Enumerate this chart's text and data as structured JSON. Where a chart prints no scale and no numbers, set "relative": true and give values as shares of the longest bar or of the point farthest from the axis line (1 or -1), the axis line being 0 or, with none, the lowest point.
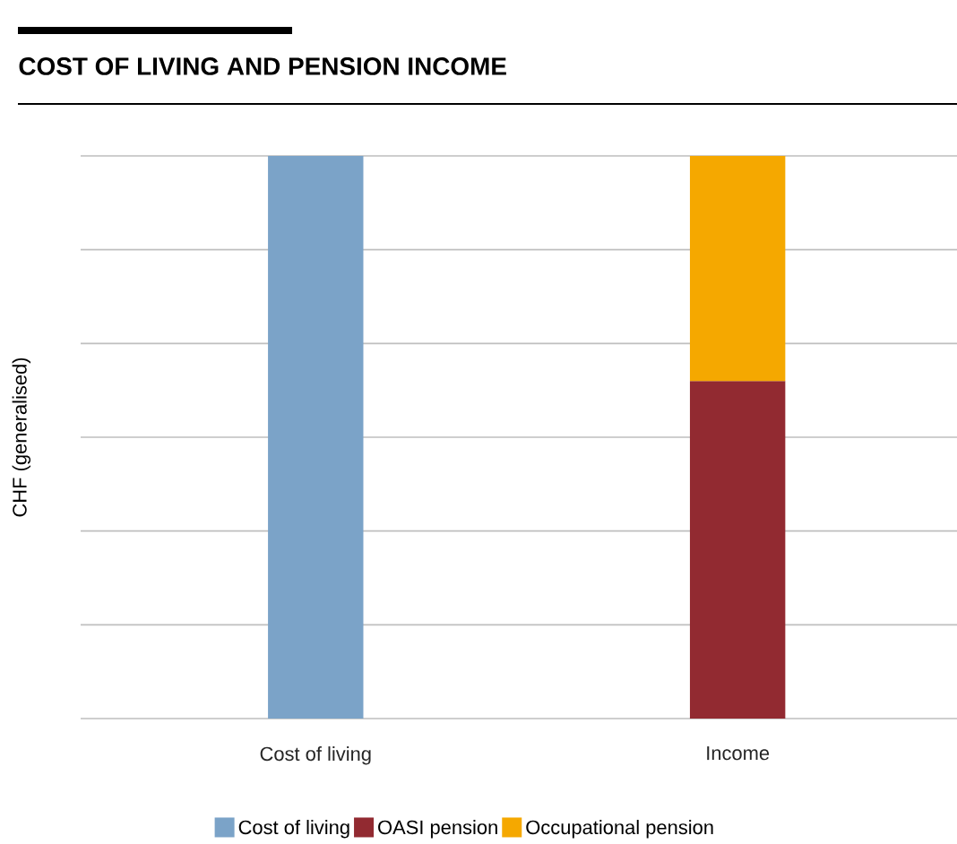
{
  "chart_data": {
    "type": "bar",
    "title": "COST OF LIVING AND PENSION INCOME",
    "ylabel": "CHF (generalised)",
    "relative": true,
    "stacked": true,
    "grid": "y",
    "legend": "bottom",
    "categories": [
      "Cost of living",
      "Income"
    ],
    "series": [
      {
        "name": "Cost of living",
        "color": "#7ba3c8",
        "values": [
          1,
          null
        ]
      },
      {
        "name": "OASI pension",
        "color": "#922a31",
        "values": [
          null,
          0.6
        ]
      },
      {
        "name": "Occupational pension",
        "color": "#f5a800",
        "values": [
          null,
          0.4
        ]
      }
    ]
  }
}
